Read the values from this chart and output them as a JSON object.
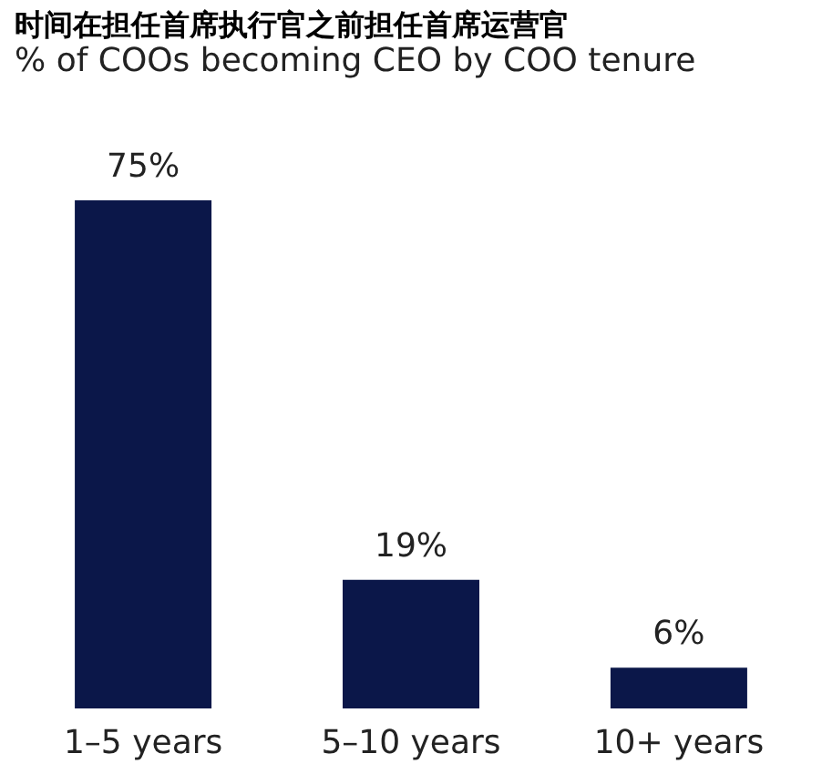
{
  "chart_data": {
    "type": "bar",
    "title": "时间在担任首席执行官之前担任首席运营官",
    "subtitle": "% of COOs becoming CEO by COO tenure",
    "categories": [
      "1–5 years",
      "5–10 years",
      "10+ years"
    ],
    "values": [
      75,
      19,
      6
    ],
    "value_labels": [
      "75%",
      "19%",
      "6%"
    ],
    "color": "#0b1749"
  }
}
